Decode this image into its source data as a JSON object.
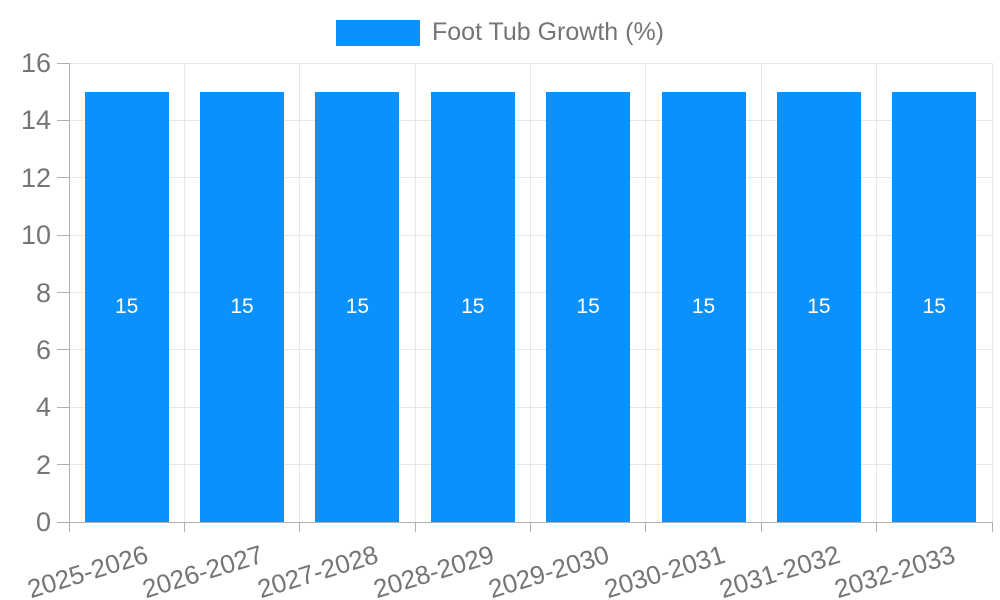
{
  "chart_data": {
    "type": "bar",
    "categories": [
      "2025-2026",
      "2026-2027",
      "2027-2028",
      "2028-2029",
      "2029-2030",
      "2030-2031",
      "2031-2032",
      "2032-2033"
    ],
    "series": [
      {
        "name": "Foot Tub Growth (%)",
        "values": [
          15,
          15,
          15,
          15,
          15,
          15,
          15,
          15
        ]
      }
    ],
    "bar_value_labels": [
      "15",
      "15",
      "15",
      "15",
      "15",
      "15",
      "15",
      "15"
    ],
    "ylim": [
      0,
      16
    ],
    "yticks": [
      0,
      2,
      4,
      6,
      8,
      10,
      12,
      14,
      16
    ],
    "grid": true,
    "legend_position": "top",
    "colors": {
      "bar": "#0a91fb",
      "bar_label": "#ffffff",
      "tick_text": "#757575",
      "grid": "#e6e6e6",
      "axis": "#b0b0b0"
    }
  }
}
